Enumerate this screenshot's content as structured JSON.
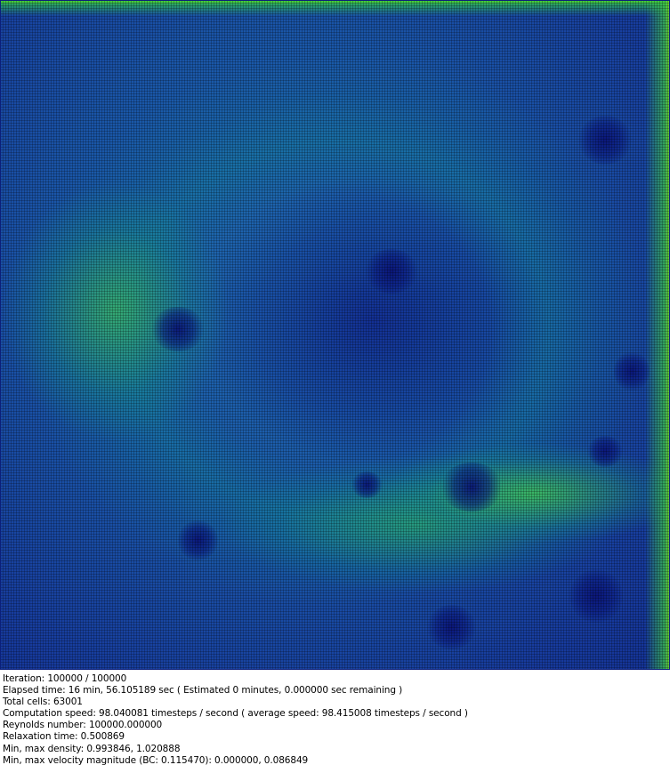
{
  "visualization": {
    "type": "flow-velocity-magnitude-field",
    "colormap": [
      "#12298f",
      "#1a56a8",
      "#1f6ab0",
      "#2aa0a0",
      "#46c87a",
      "#7be03a"
    ]
  },
  "status": {
    "iteration": "Iteration: 100000 / 100000",
    "elapsed": "Elapsed time: 16 min, 56.105189 sec ( Estimated 0 minutes, 0.000000 sec remaining )",
    "total_cells": "Total cells: 63001",
    "computation_speed": "Computation speed: 98.040081 timesteps / second ( average speed: 98.415008 timesteps / second )",
    "reynolds": "Reynolds number: 100000.000000",
    "relaxation": "Relaxation time: 0.500869",
    "density": "Min, max density: 0.993846, 1.020888",
    "velocity": "Min, max velocity magnitude (BC: 0.115470): 0.000000, 0.086849"
  }
}
